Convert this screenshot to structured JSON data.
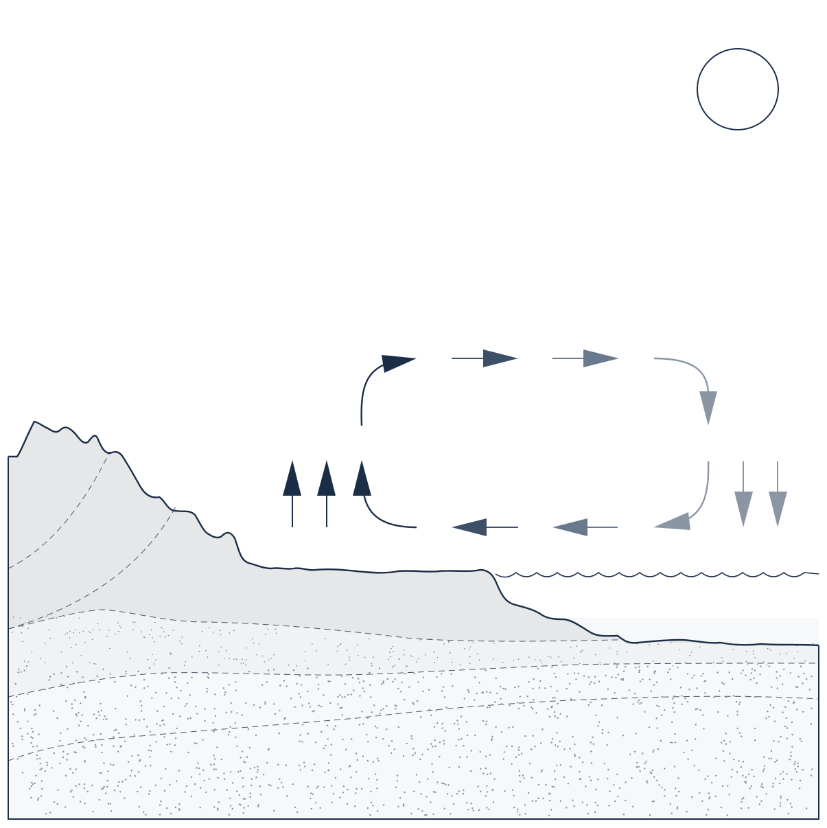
{
  "diagram": {
    "kind": "sea-breeze-circulation",
    "colors": {
      "outline": "#1b2e48",
      "land_fill": "#e6e7e9",
      "ground_fill_upper": "#f2f3f4",
      "ground_fill_lower": "#f7f8f9",
      "stipple": "#8a8d93",
      "arrow_dark": "#1b2e48",
      "arrow_mid": "#3d5068",
      "arrow_light": "#6a7a8e",
      "arrow_lightest": "#8a96a4"
    },
    "elements": {
      "sun": "sun-circle",
      "sea": "wavy-sea-surface",
      "land": "coastal-hills-cross-section",
      "circulation": "clockwise-airflow-loop"
    }
  }
}
